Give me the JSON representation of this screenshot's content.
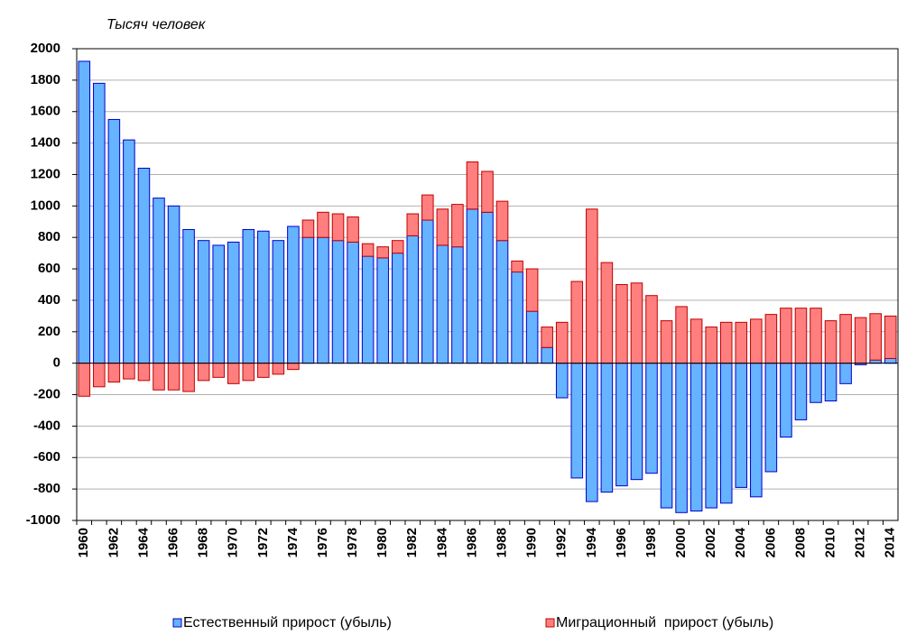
{
  "chart_data": {
    "type": "stacked_bar",
    "y_axis_label": "Тысяч человек",
    "categories": [
      "1960",
      null,
      "1962",
      null,
      "1964",
      null,
      "1966",
      null,
      "1968",
      null,
      "1970",
      null,
      "1972",
      null,
      "1974",
      null,
      "1976",
      null,
      "1978",
      null,
      "1980",
      null,
      "1982",
      null,
      "1984",
      null,
      "1986",
      null,
      "1988",
      null,
      "1990",
      null,
      "1992",
      null,
      "1994",
      null,
      "1996",
      null,
      "1998",
      null,
      "2000",
      null,
      "2002",
      null,
      "2004",
      null,
      "2006",
      null,
      "2008",
      null,
      "2010",
      null,
      "2012",
      null,
      "2014"
    ],
    "series": [
      {
        "name": "Естественный прирост (убыль)",
        "color": "#66b3ff",
        "border": "#0000cc",
        "values": [
          1920,
          1780,
          1550,
          1420,
          1240,
          1050,
          1000,
          850,
          780,
          750,
          770,
          850,
          840,
          780,
          870,
          800,
          800,
          780,
          770,
          680,
          670,
          700,
          810,
          910,
          750,
          740,
          980,
          960,
          780,
          580,
          330,
          100,
          -220,
          -730,
          -880,
          -820,
          -780,
          -740,
          -700,
          -920,
          -950,
          -940,
          -920,
          -890,
          -790,
          -850,
          -690,
          -470,
          -360,
          -250,
          -240,
          -130,
          -10,
          20,
          30
        ]
      },
      {
        "name": "Миграционный  прирост (убыль)",
        "color": "#ff7f7f",
        "border": "#c00000",
        "values": [
          -210,
          -150,
          -120,
          -100,
          -110,
          -170,
          -170,
          -180,
          -110,
          -90,
          -130,
          -110,
          -90,
          -70,
          -40,
          110,
          160,
          170,
          160,
          80,
          70,
          80,
          140,
          160,
          230,
          270,
          300,
          260,
          250,
          70,
          270,
          130,
          260,
          520,
          980,
          640,
          500,
          510,
          430,
          270,
          360,
          280,
          230,
          260,
          260,
          280,
          310,
          350,
          350,
          350,
          270,
          310,
          290,
          295,
          270
        ]
      }
    ],
    "ylim": [
      -1000,
      2000
    ],
    "yticks": [
      -1000,
      -800,
      -600,
      -400,
      -200,
      0,
      200,
      400,
      600,
      800,
      1000,
      1200,
      1400,
      1600,
      1800,
      2000
    ],
    "grid": true,
    "legend": "bottom"
  }
}
